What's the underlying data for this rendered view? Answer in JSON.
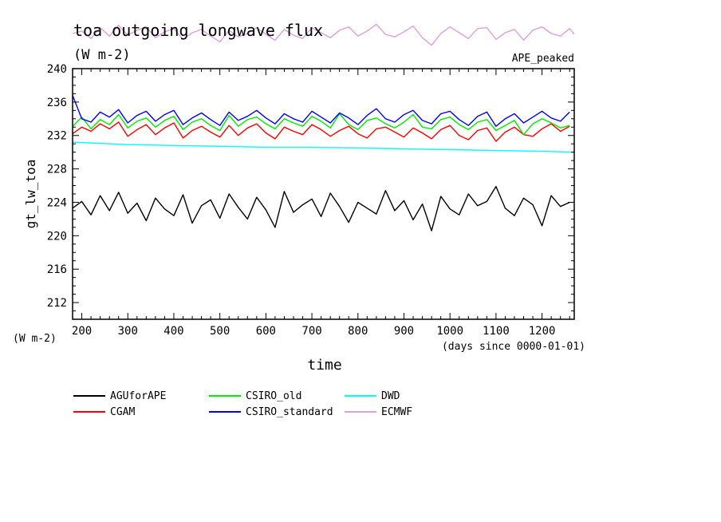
{
  "chart_data": {
    "type": "line",
    "title": "toa outgoing longwave flux",
    "units": "(W m-2)",
    "dataset_label": "APE_peaked",
    "xlabel": "time",
    "xunits": "(days since 0000-01-01)",
    "ylabel": "gt_lw_toa",
    "yunits": "(W m-2)",
    "xlim": [
      180,
      1270
    ],
    "ylim": [
      210,
      240
    ],
    "xticks": [
      200,
      300,
      400,
      500,
      600,
      700,
      800,
      900,
      1000,
      1100,
      1200
    ],
    "yticks": [
      212,
      216,
      220,
      224,
      228,
      232,
      236,
      240
    ],
    "grid": false,
    "legend_position": "bottom",
    "series": [
      {
        "name": "AGUforAPE",
        "color": "#000000",
        "x": [
          180,
          200,
          220,
          240,
          260,
          280,
          300,
          320,
          340,
          360,
          380,
          400,
          420,
          440,
          460,
          480,
          500,
          520,
          540,
          560,
          580,
          600,
          620,
          640,
          660,
          680,
          700,
          720,
          740,
          760,
          780,
          800,
          820,
          840,
          860,
          880,
          900,
          920,
          940,
          960,
          980,
          1000,
          1020,
          1040,
          1060,
          1080,
          1100,
          1120,
          1140,
          1160,
          1180,
          1200,
          1220,
          1240,
          1260
        ],
        "y": [
          223.3,
          224.1,
          222.5,
          224.8,
          223.0,
          225.2,
          222.7,
          223.9,
          221.8,
          224.5,
          223.2,
          222.4,
          224.9,
          221.5,
          223.6,
          224.3,
          222.1,
          225.0,
          223.4,
          222.0,
          224.6,
          223.1,
          221.0,
          225.3,
          222.8,
          223.7,
          224.4,
          222.3,
          225.1,
          223.5,
          221.6,
          224.0,
          223.3,
          222.6,
          225.4,
          223.0,
          224.2,
          221.9,
          223.8,
          220.6,
          224.7,
          223.2,
          222.5,
          225.0,
          223.6,
          224.1,
          225.9,
          223.3,
          222.4,
          224.5,
          223.7,
          221.2,
          224.8,
          223.5,
          224.0
        ]
      },
      {
        "name": "CGAM",
        "color": "#ff0000",
        "x": [
          180,
          200,
          220,
          240,
          260,
          280,
          300,
          320,
          340,
          360,
          380,
          400,
          420,
          440,
          460,
          480,
          500,
          520,
          540,
          560,
          580,
          600,
          620,
          640,
          660,
          680,
          700,
          720,
          740,
          760,
          780,
          800,
          820,
          840,
          860,
          880,
          900,
          920,
          940,
          960,
          980,
          1000,
          1020,
          1040,
          1060,
          1080,
          1100,
          1120,
          1140,
          1160,
          1180,
          1200,
          1220,
          1240,
          1260
        ],
        "y": [
          232.2,
          233.0,
          232.5,
          233.4,
          232.8,
          233.6,
          231.9,
          232.7,
          233.3,
          232.1,
          232.9,
          233.5,
          231.7,
          232.6,
          233.1,
          232.4,
          231.8,
          233.2,
          232.0,
          232.9,
          233.4,
          232.3,
          231.6,
          233.0,
          232.5,
          232.1,
          233.3,
          232.7,
          231.9,
          232.6,
          233.1,
          232.2,
          231.7,
          232.8,
          233.0,
          232.4,
          231.8,
          232.9,
          232.3,
          231.6,
          232.7,
          233.2,
          232.0,
          231.5,
          232.6,
          232.9,
          231.3,
          232.4,
          233.0,
          232.1,
          231.9,
          232.8,
          233.4,
          232.5,
          233.1
        ]
      },
      {
        "name": "CSIRO_old",
        "color": "#00ee00",
        "x": [
          180,
          200,
          220,
          240,
          260,
          280,
          300,
          320,
          340,
          360,
          380,
          400,
          420,
          440,
          460,
          480,
          500,
          520,
          540,
          560,
          580,
          600,
          620,
          640,
          660,
          680,
          700,
          720,
          740,
          760,
          780,
          800,
          820,
          840,
          860,
          880,
          900,
          920,
          940,
          960,
          980,
          1000,
          1020,
          1040,
          1060,
          1080,
          1100,
          1120,
          1140,
          1160,
          1180,
          1200,
          1220,
          1240,
          1260
        ],
        "y": [
          233.1,
          234.2,
          232.8,
          233.9,
          233.3,
          234.5,
          232.9,
          233.7,
          234.1,
          233.0,
          233.8,
          234.3,
          232.7,
          233.6,
          234.0,
          233.2,
          232.6,
          234.4,
          233.1,
          233.9,
          234.2,
          233.4,
          232.8,
          234.0,
          233.5,
          233.1,
          234.3,
          233.7,
          232.9,
          234.6,
          233.3,
          232.7,
          233.8,
          234.1,
          233.4,
          232.9,
          233.6,
          234.5,
          233.0,
          232.8,
          233.9,
          234.2,
          233.3,
          232.7,
          233.6,
          233.9,
          232.6,
          233.2,
          233.8,
          232.1,
          233.4,
          234.0,
          233.5,
          232.9,
          233.2
        ]
      },
      {
        "name": "CSIRO_standard",
        "color": "#0000ff",
        "x": [
          180,
          200,
          220,
          240,
          260,
          280,
          300,
          320,
          340,
          360,
          380,
          400,
          420,
          440,
          460,
          480,
          500,
          520,
          540,
          560,
          580,
          600,
          620,
          640,
          660,
          680,
          700,
          720,
          740,
          760,
          780,
          800,
          820,
          840,
          860,
          880,
          900,
          920,
          940,
          960,
          980,
          1000,
          1020,
          1040,
          1060,
          1080,
          1100,
          1120,
          1140,
          1160,
          1180,
          1200,
          1220,
          1240,
          1260
        ],
        "y": [
          236.8,
          234.0,
          233.6,
          234.8,
          234.2,
          235.1,
          233.5,
          234.4,
          234.9,
          233.7,
          234.5,
          235.0,
          233.3,
          234.1,
          234.7,
          233.9,
          233.2,
          234.8,
          233.8,
          234.3,
          235.0,
          234.1,
          233.4,
          234.6,
          234.0,
          233.6,
          234.9,
          234.2,
          233.5,
          234.7,
          234.1,
          233.3,
          234.4,
          235.2,
          234.0,
          233.6,
          234.5,
          235.0,
          233.8,
          233.4,
          234.6,
          234.9,
          233.9,
          233.2,
          234.3,
          234.8,
          233.1,
          234.0,
          234.6,
          233.5,
          234.2,
          234.9,
          234.1,
          233.7,
          234.8
        ]
      },
      {
        "name": "DWD",
        "color": "#00ffff",
        "x": [
          180,
          300,
          400,
          500,
          600,
          700,
          800,
          900,
          1000,
          1100,
          1200,
          1270
        ],
        "y": [
          231.2,
          230.9,
          230.8,
          230.7,
          230.6,
          230.6,
          230.5,
          230.4,
          230.3,
          230.2,
          230.1,
          230.0
        ]
      },
      {
        "name": "ECMWF",
        "color": "#dda0dd",
        "x": [
          180,
          200,
          220,
          240,
          260,
          280,
          300,
          320,
          340,
          360,
          380,
          400,
          420,
          440,
          460,
          480,
          500,
          520,
          540,
          560,
          580,
          600,
          620,
          640,
          660,
          680,
          700,
          720,
          740,
          760,
          780,
          800,
          820,
          840,
          860,
          880,
          900,
          920,
          940,
          960,
          980,
          1000,
          1020,
          1040,
          1060,
          1080,
          1100,
          1120,
          1140,
          1160,
          1180,
          1200,
          1220,
          1240,
          1260,
          1270
        ],
        "y": [
          244.2,
          244.5,
          243.6,
          244.9,
          243.9,
          245.2,
          244.0,
          244.6,
          245.0,
          243.7,
          244.4,
          244.8,
          243.5,
          244.3,
          244.7,
          243.9,
          243.2,
          244.6,
          243.8,
          244.2,
          244.9,
          244.1,
          243.4,
          244.7,
          244.0,
          243.6,
          244.9,
          244.3,
          243.7,
          244.6,
          245.0,
          243.9,
          244.5,
          245.3,
          244.1,
          243.8,
          244.4,
          245.1,
          243.7,
          242.8,
          244.2,
          245.0,
          244.3,
          243.6,
          244.8,
          244.9,
          243.5,
          244.3,
          244.7,
          243.4,
          244.6,
          245.0,
          244.2,
          243.9,
          244.8,
          244.1
        ]
      }
    ]
  }
}
